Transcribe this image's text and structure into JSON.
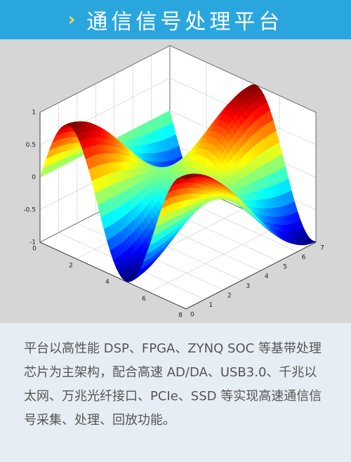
{
  "header": {
    "title": "通信信号处理平台"
  },
  "figure": {
    "z_ticks": [
      1,
      0.5,
      0,
      -0.5,
      -1
    ],
    "x_ticks": [
      0,
      2,
      4,
      6,
      8
    ],
    "y_ticks": [
      0,
      1,
      2,
      3,
      4,
      5,
      6,
      7
    ]
  },
  "description": "平台以高性能 DSP、FPGA、ZYNQ SOC 等基带处理芯片为主架构，配合高速 AD/DA、USB3.0、千兆以太网、万兆光纤接口、PCIe、SSD 等实现高速通信信号采集、处理、回放功能。"
}
